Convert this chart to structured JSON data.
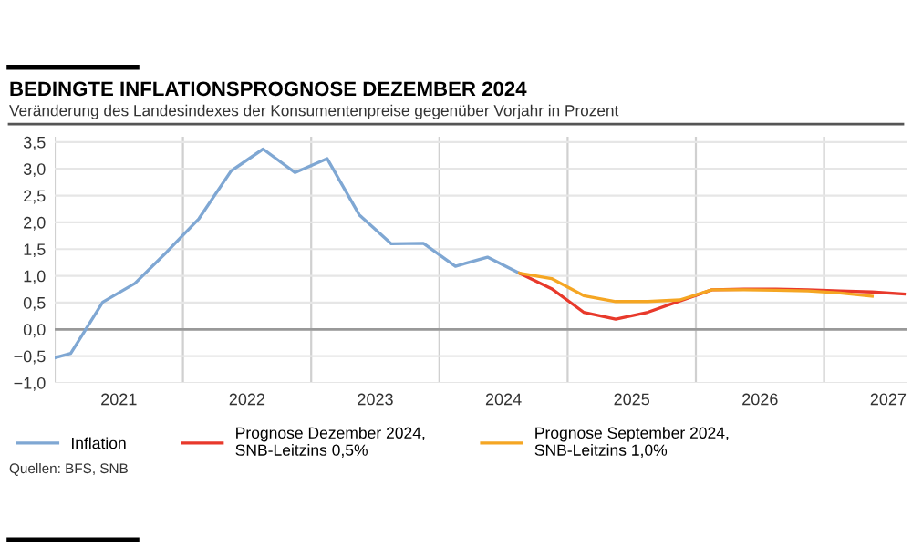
{
  "chart_data": {
    "type": "line",
    "title": "BEDINGTE INFLATIONSPROGNOSE DEZEMBER 2024",
    "subtitle": "Veränderung des Landesindexes der Konsumentenpreise gegenüber Vorjahr in Prozent",
    "xlim": [
      2021,
      2027.65
    ],
    "xticks": [
      {
        "value": 2021,
        "label": null
      },
      {
        "value": 2021.5,
        "label": "2021"
      },
      {
        "value": 2022,
        "label": null
      },
      {
        "value": 2022.5,
        "label": "2022"
      },
      {
        "value": 2023,
        "label": null
      },
      {
        "value": 2023.5,
        "label": "2023"
      },
      {
        "value": 2024,
        "label": null
      },
      {
        "value": 2024.5,
        "label": "2024"
      },
      {
        "value": 2025,
        "label": null
      },
      {
        "value": 2025.5,
        "label": "2025"
      },
      {
        "value": 2026,
        "label": null
      },
      {
        "value": 2026.5,
        "label": "2026"
      },
      {
        "value": 2027,
        "label": null
      },
      {
        "value": 2027.5,
        "label": "2027"
      }
    ],
    "ylim": [
      -1.0,
      3.6
    ],
    "yticks": [
      {
        "value": -1.0,
        "label": "−1,0"
      },
      {
        "value": -0.5,
        "label": "−0,5"
      },
      {
        "value": 0.0,
        "label": "0,0"
      },
      {
        "value": 0.5,
        "label": "0,5"
      },
      {
        "value": 1.0,
        "label": "1,0"
      },
      {
        "value": 1.5,
        "label": "1,5"
      },
      {
        "value": 2.0,
        "label": "2,0"
      },
      {
        "value": 2.5,
        "label": "2,5"
      },
      {
        "value": 3.0,
        "label": "3,0"
      },
      {
        "value": 3.5,
        "label": "3,5"
      }
    ],
    "grid": true,
    "legend": "bottom",
    "marker": "none",
    "line_style": "solid",
    "ref_lines": [
      {
        "axis": "y",
        "value": 0,
        "color": "#999999"
      }
    ],
    "series": [
      {
        "name": "Inflation",
        "color": "#7fa7d3",
        "x": [
          2021.0,
          2021.125,
          2021.375,
          2021.625,
          2021.875,
          2022.125,
          2022.375,
          2022.625,
          2022.875,
          2023.125,
          2023.375,
          2023.625,
          2023.875,
          2024.125,
          2024.375,
          2024.625
        ],
        "values": [
          -0.53,
          -0.45,
          0.51,
          0.86,
          1.45,
          2.07,
          2.96,
          3.37,
          2.93,
          3.19,
          2.14,
          1.6,
          1.61,
          1.18,
          1.35,
          1.05
        ]
      },
      {
        "name": "Prognose Dezember 2024,\nSNB-Leitzins 0,5%",
        "color": "#e8392b",
        "x": [
          2024.625,
          2024.875,
          2025.125,
          2025.375,
          2025.625,
          2025.875,
          2026.125,
          2026.375,
          2026.625,
          2026.875,
          2027.125,
          2027.375,
          2027.625
        ],
        "values": [
          1.05,
          0.76,
          0.32,
          0.19,
          0.32,
          0.53,
          0.74,
          0.75,
          0.75,
          0.74,
          0.72,
          0.7,
          0.66
        ]
      },
      {
        "name": "Prognose September 2024,\nSNB-Leitzins 1,0%",
        "color": "#f5a623",
        "x": [
          2024.625,
          2024.875,
          2025.125,
          2025.375,
          2025.625,
          2025.875,
          2026.125,
          2026.375,
          2026.625,
          2026.875,
          2027.125,
          2027.375
        ],
        "values": [
          1.05,
          0.95,
          0.63,
          0.52,
          0.52,
          0.55,
          0.74,
          0.74,
          0.73,
          0.72,
          0.68,
          0.62
        ]
      }
    ],
    "annotations": [
      "Quellen: BFS, SNB"
    ]
  }
}
